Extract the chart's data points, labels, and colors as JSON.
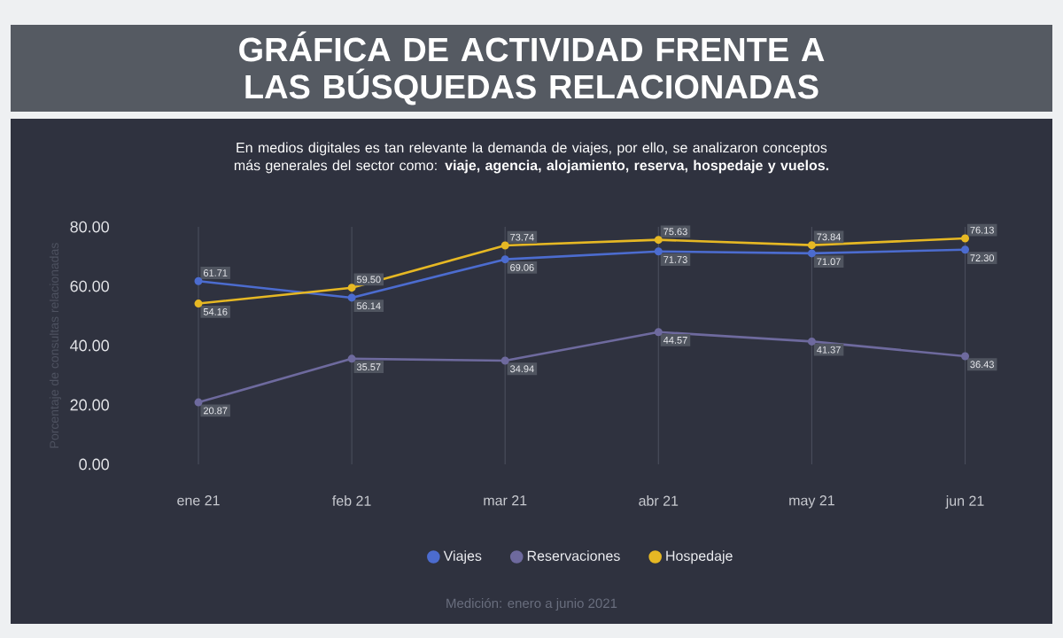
{
  "chart_data": {
    "type": "line",
    "title": "GRÁFICA DE ACTIVIDAD FRENTE A LAS BÚSQUEDAS RELACIONADAS",
    "subtitle": "En medios digitales es tan relevante la demanda de viajes, por ello, se analizaron conceptos más generales del sector como: **viaje, agencia, alojamiento, reserva, hospedaje y vuelos.**",
    "ylabel": "Porcentaje de consultas relacionadas",
    "categories": [
      "ene 21",
      "feb 21",
      "mar 21",
      "abr 21",
      "may 21",
      "jun 21"
    ],
    "series": [
      {
        "name": "Viajes",
        "color": "#4c6ccf",
        "values": [
          61.71,
          56.14,
          69.06,
          71.73,
          71.07,
          72.3
        ],
        "value_labels": [
          "61.71",
          "56.14",
          "69.06",
          "71.73",
          "71.07",
          "72.30"
        ]
      },
      {
        "name": "Reservaciones",
        "color": "#6e6a9e",
        "values": [
          20.87,
          35.57,
          34.94,
          44.57,
          41.37,
          36.43
        ],
        "value_labels": [
          "20.87",
          "35.57",
          "34.94",
          "44.57",
          "41.37",
          "36.43"
        ]
      },
      {
        "name": "Hospedaje",
        "color": "#e6b824",
        "values": [
          54.16,
          59.5,
          73.74,
          75.63,
          73.84,
          76.13
        ],
        "value_labels": [
          "54.16",
          "59.50",
          "73.74",
          "75.63",
          "73.84",
          "76.13"
        ]
      }
    ],
    "ylim": [
      0,
      80
    ],
    "yticks": [
      {
        "value": 0,
        "label": "0.00"
      },
      {
        "value": 20,
        "label": "20.00"
      },
      {
        "value": 40,
        "label": "40.00"
      },
      {
        "value": 60,
        "label": "60.00"
      },
      {
        "value": 80,
        "label": "80.00"
      }
    ],
    "grid": "x",
    "legend": "bottom",
    "marker": "circle",
    "line_style": "solid",
    "annotations": [
      "Medición: enero a junio 2021"
    ]
  }
}
